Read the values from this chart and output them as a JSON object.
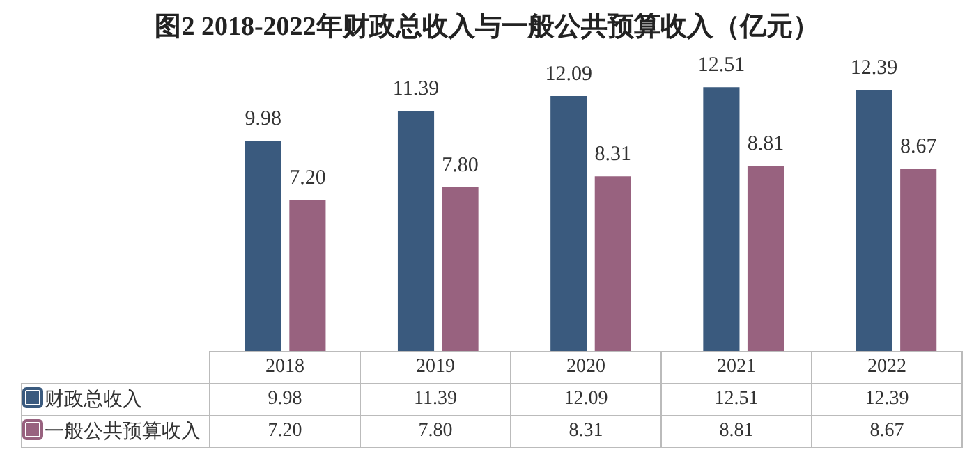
{
  "chart_data": {
    "type": "bar",
    "title": "图2 2018-2022年财政总收入与一般公共预算收入（亿元）",
    "categories": [
      "2018",
      "2019",
      "2020",
      "2021",
      "2022"
    ],
    "series": [
      {
        "name": "财政总收入",
        "color": "#3a5a7e",
        "values": [
          9.98,
          11.39,
          12.09,
          12.51,
          12.39
        ],
        "value_labels": [
          "9.98",
          "11.39",
          "12.09",
          "12.51",
          "12.39"
        ]
      },
      {
        "name": "一般公共预算收入",
        "color": "#98627f",
        "values": [
          7.2,
          7.8,
          8.31,
          8.81,
          8.67
        ],
        "value_labels": [
          "7.20",
          "7.80",
          "8.31",
          "8.81",
          "8.67"
        ]
      }
    ],
    "legend": "bottom left",
    "grid": false
  }
}
